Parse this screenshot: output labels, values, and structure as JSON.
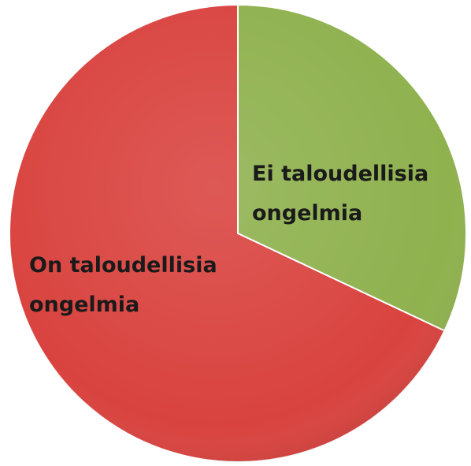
{
  "chart_data": {
    "type": "pie",
    "categories": [
      "Ei taloudellisia ongelmia",
      "On taloudellisia ongelmia"
    ],
    "values": [
      32,
      68
    ],
    "colors": [
      "#8fb14e",
      "#d9433f"
    ]
  }
}
